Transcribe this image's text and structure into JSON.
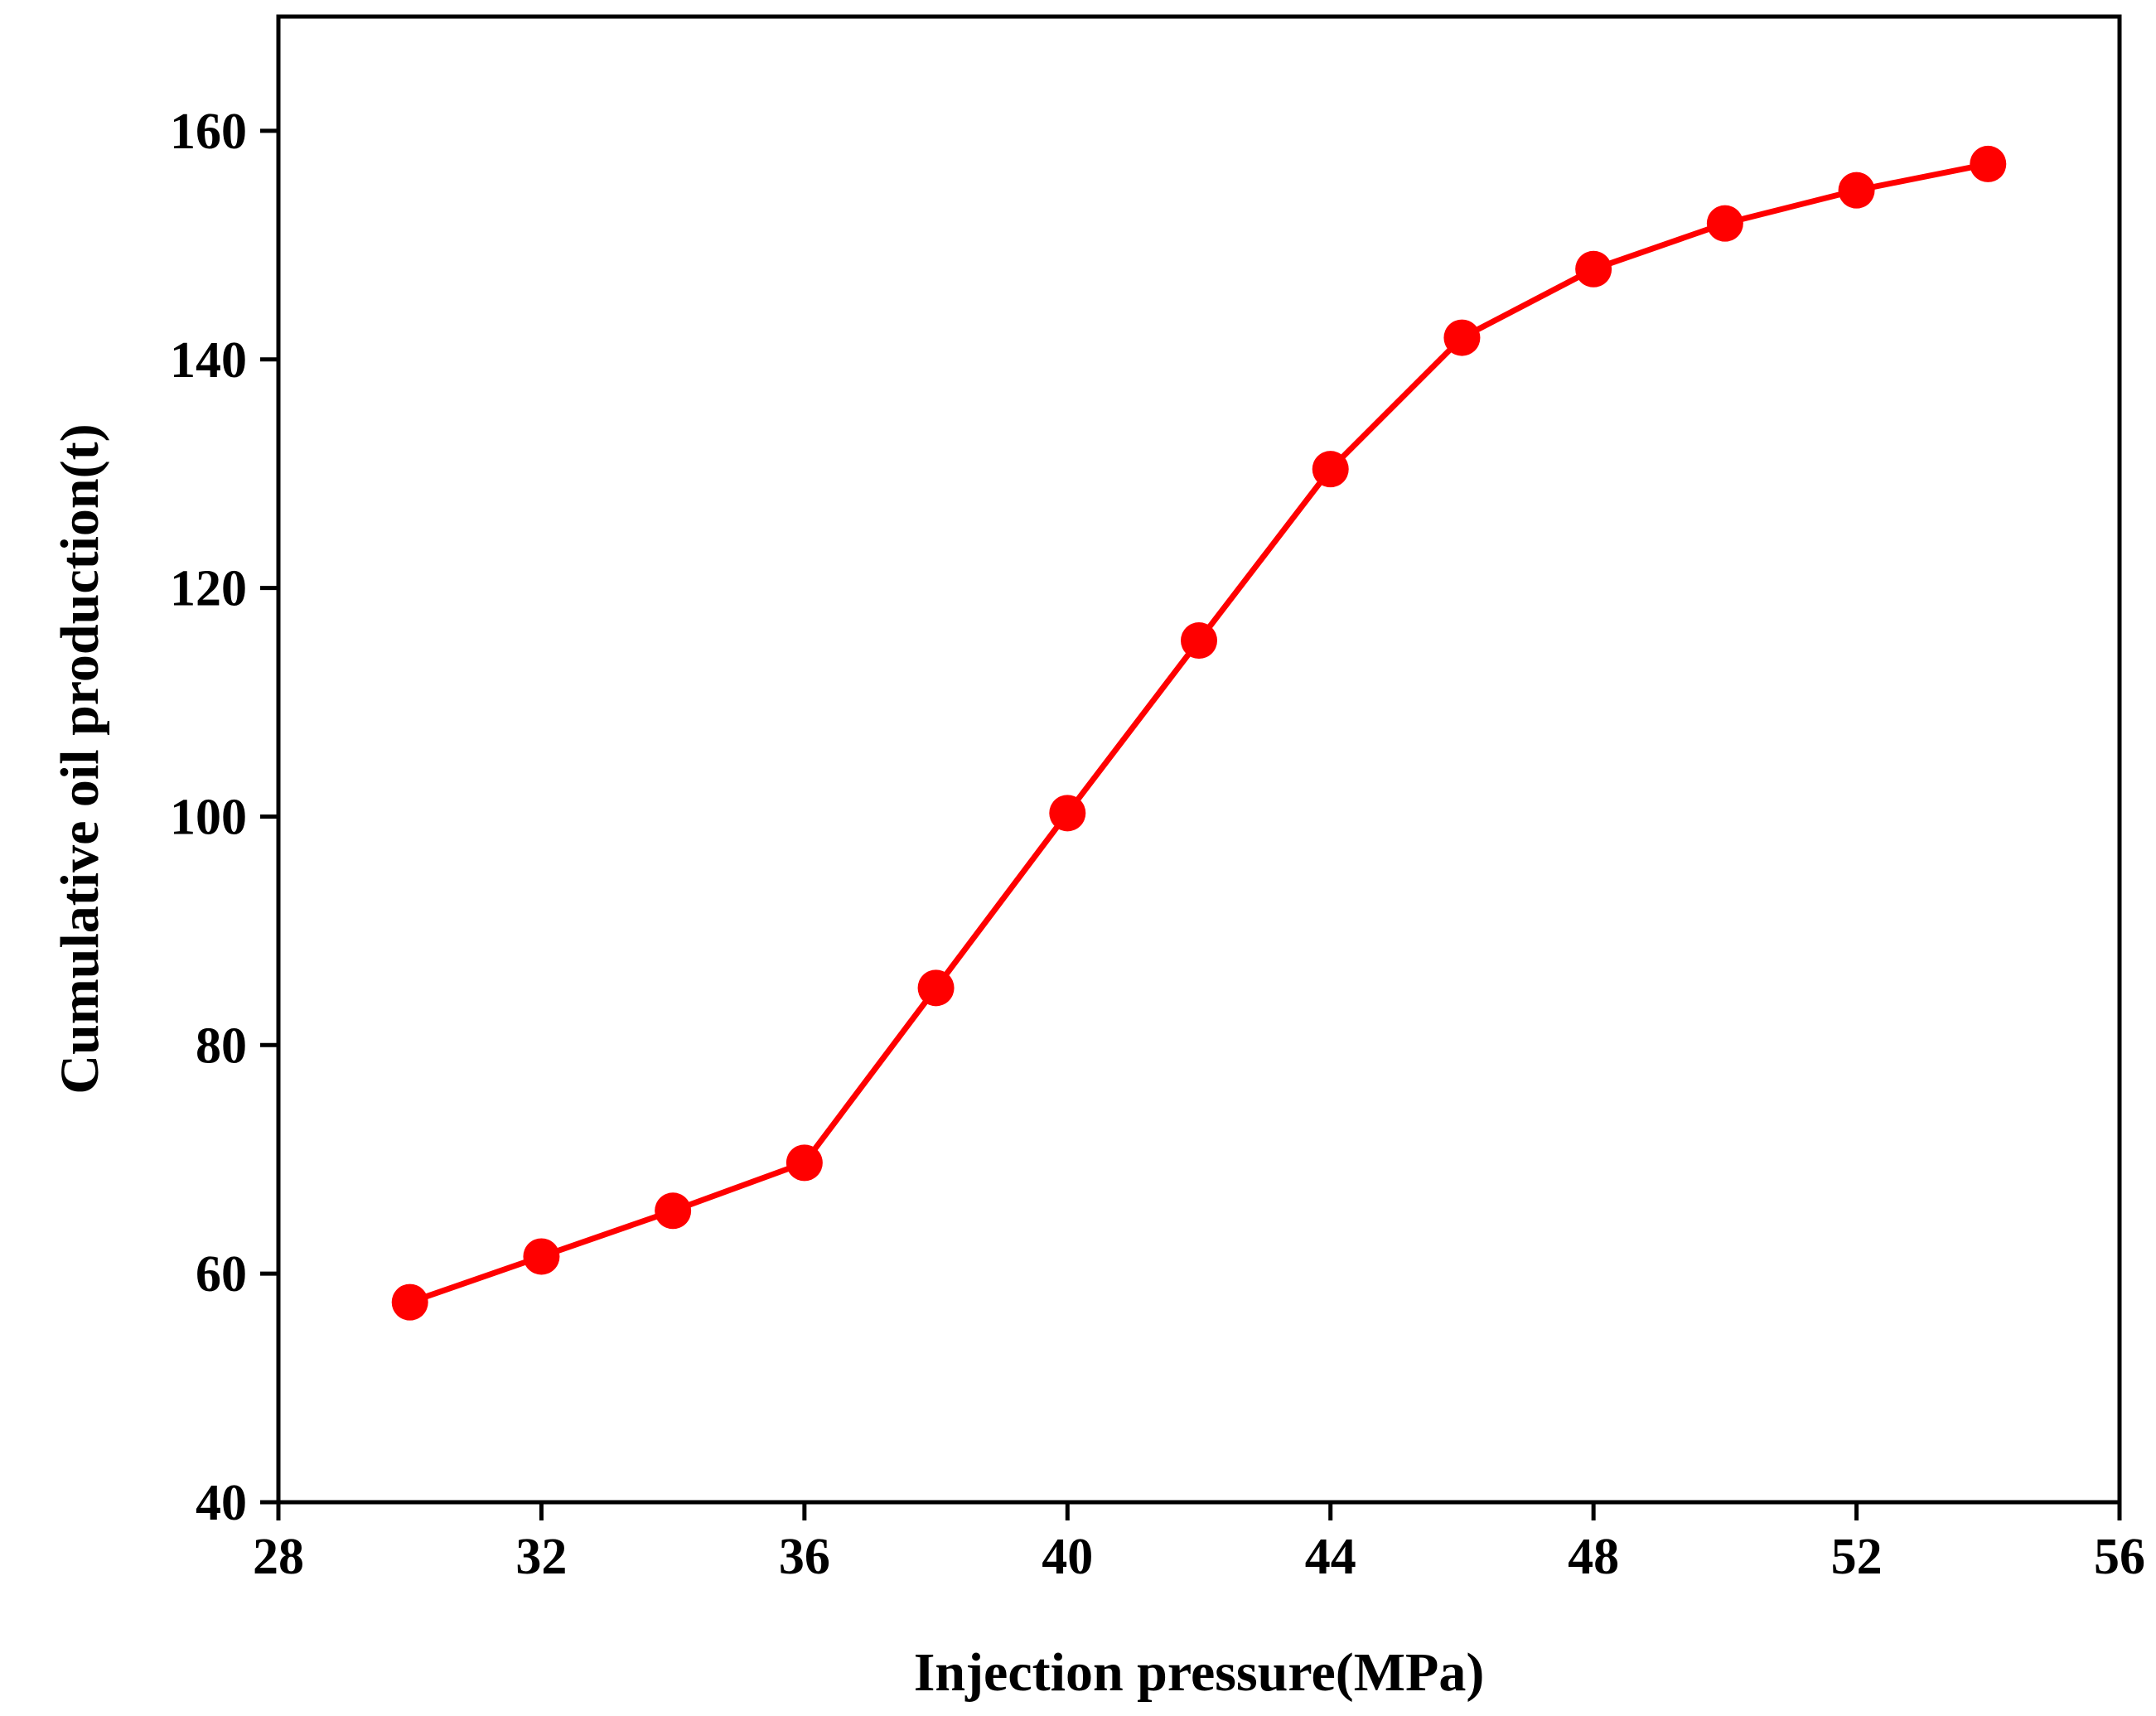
{
  "chart_data": {
    "type": "line",
    "title": "",
    "xlabel": "Injection pressure(MPa)",
    "ylabel": "Cumulative oil production(t)",
    "xlim": [
      28,
      56
    ],
    "ylim": [
      40,
      170
    ],
    "xticks": [
      28,
      32,
      36,
      40,
      44,
      48,
      52,
      56
    ],
    "yticks": [
      40,
      60,
      80,
      100,
      120,
      140,
      160
    ],
    "grid": false,
    "legend": "none",
    "series": [
      {
        "name": "Cumulative oil production",
        "color": "#ff0000",
        "marker": "circle",
        "x": [
          30,
          32,
          34,
          36,
          38,
          40,
          42,
          44,
          46,
          48,
          50,
          52,
          54
        ],
        "y": [
          57.5,
          61.5,
          65.5,
          69.7,
          85,
          100.3,
          115.4,
          130.4,
          141.9,
          147.9,
          151.9,
          154.8,
          157.1
        ]
      }
    ]
  }
}
